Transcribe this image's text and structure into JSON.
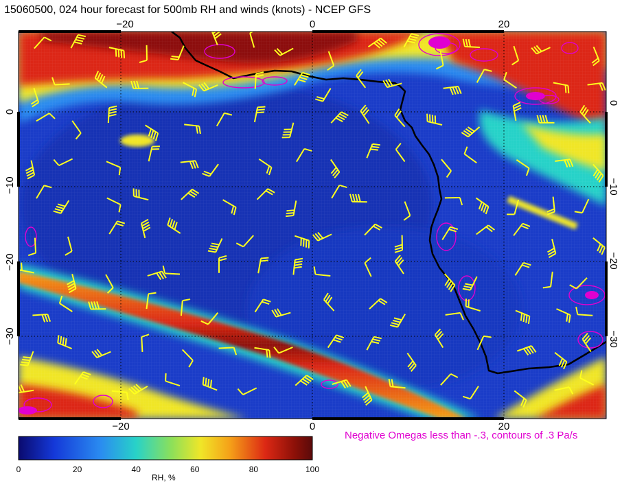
{
  "title": "15060500, 024 hour forecast for 500mb RH and winds (knots) - NCEP GFS",
  "footnote": "Negative Omegas less than -.3, contours of .3 Pa/s",
  "colorbar": {
    "label": "RH, %",
    "ticks": [
      "0",
      "20",
      "40",
      "60",
      "80",
      "100"
    ],
    "range": [
      0,
      100
    ],
    "colors": [
      "#0a0a6e",
      "#1438d8",
      "#2a8cf0",
      "#28d2c8",
      "#8ce05a",
      "#f0e628",
      "#f5a018",
      "#dc2814",
      "#8c1008",
      "#5a0a0a"
    ]
  },
  "map": {
    "lon_labels": [
      "−20",
      "0",
      "20"
    ],
    "lat_labels": [
      "0",
      "−10",
      "−20",
      "−30"
    ],
    "coast_color": "#000000",
    "omega_color": "#e000d0",
    "barb_color": "#ffff1e",
    "lon_range": [
      -30,
      30
    ],
    "lat_range": [
      -40,
      8
    ]
  }
}
